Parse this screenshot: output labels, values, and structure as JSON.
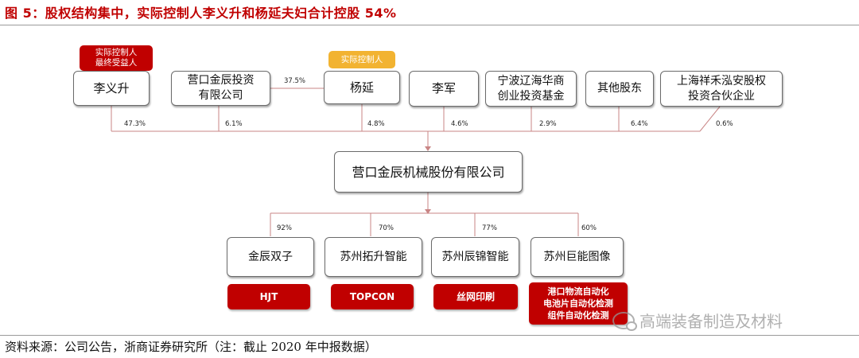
{
  "title": "图 5：股权结构集中，实际控制人李义升和杨延夫妇合计控股 54%",
  "source": "资料来源：公司公告，浙商证券研究所（注：截止 2020 年中报数据）",
  "tags": {
    "li_yisheng": "实际控制人\n最终受益人",
    "yang_yan": "实际控制人"
  },
  "shareholders": [
    {
      "name": "李义升",
      "pct": "47.3%"
    },
    {
      "name": "营口金辰投资\n有限公司",
      "pct": "6.1%"
    },
    {
      "name": "杨延",
      "pct": "4.8%"
    },
    {
      "name": "李军",
      "pct": "4.6%"
    },
    {
      "name": "宁波辽海华商\n创业投资基金",
      "pct": "2.9%"
    },
    {
      "name": "其他股东",
      "pct": "6.4%"
    },
    {
      "name": "上海祥禾泓安股权\n投资合伙企业",
      "pct": "0.6%"
    }
  ],
  "yang_to_jinchen_pct": "37.5%",
  "company": "营口金辰机械股份有限公司",
  "subsidiaries": [
    {
      "name": "金辰双子",
      "pct": "92%",
      "tech": "HJT"
    },
    {
      "name": "苏州拓升智能",
      "pct": "70%",
      "tech": "TOPCON"
    },
    {
      "name": "苏州辰锦智能",
      "pct": "77%",
      "tech": "丝网印刷"
    },
    {
      "name": "苏州巨能图像",
      "pct": "60%",
      "tech": "港口物流自动化\n电池片自动化检测\n组件自动化检测"
    }
  ],
  "watermark": "高端装备制造及材料",
  "colors": {
    "accent": "#c00000",
    "tag_orange": "#f2b331",
    "line": "#c98585"
  }
}
